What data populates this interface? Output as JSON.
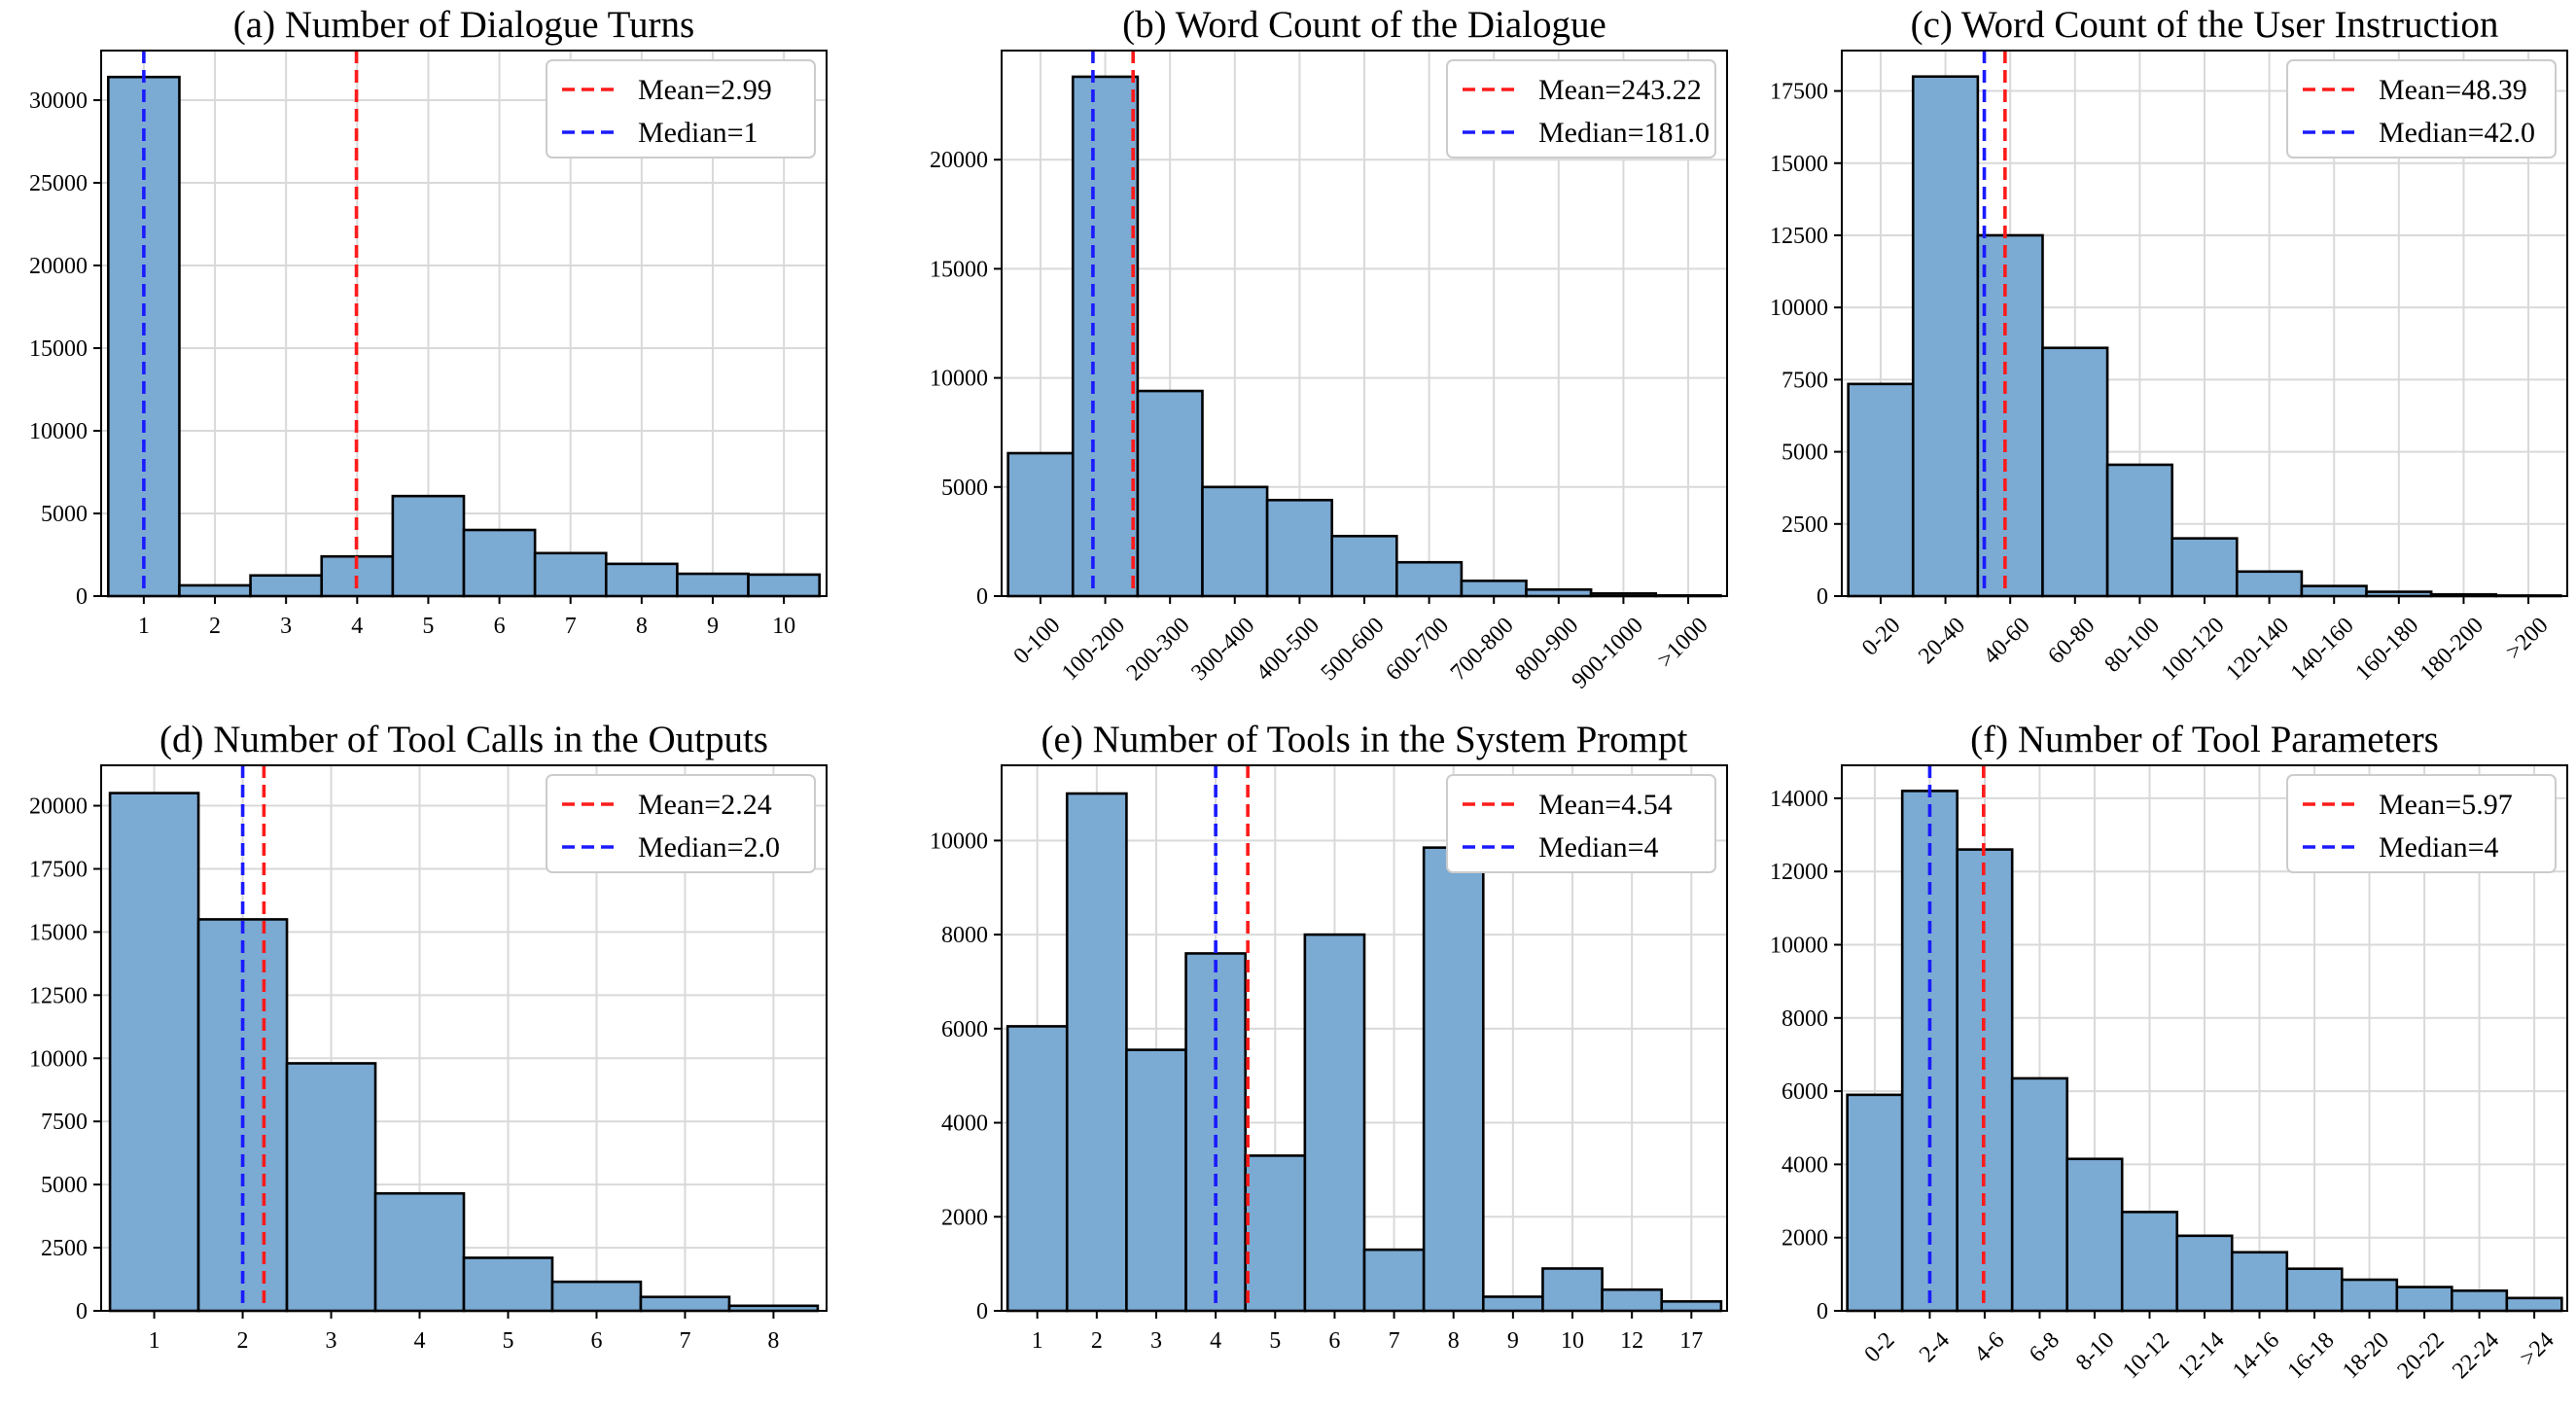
{
  "colors": {
    "bar": "#7baad3",
    "edge": "#000000",
    "mean": "#ff1a1a",
    "median": "#1a1aff",
    "grid": "#d9d9d9"
  },
  "chart_data": [
    {
      "id": "a",
      "type": "bar",
      "title": "(a) Number of Dialogue Turns",
      "categories": [
        "1",
        "2",
        "3",
        "4",
        "5",
        "6",
        "7",
        "8",
        "9",
        "10"
      ],
      "values": [
        31400,
        650,
        1250,
        2400,
        6050,
        4000,
        2600,
        1950,
        1350,
        1300
      ],
      "ylim": [
        0,
        33000
      ],
      "yticks": [
        0,
        5000,
        10000,
        15000,
        20000,
        25000,
        30000
      ],
      "xlabel_rotation": 0,
      "mean": {
        "label": "Mean=2.99",
        "position": 2.99
      },
      "median": {
        "label": "Median=1",
        "position": 0
      },
      "legend": "top-right"
    },
    {
      "id": "b",
      "type": "bar",
      "title": "(b) Word Count of the Dialogue",
      "categories": [
        "0-100",
        "100-200",
        "200-300",
        "300-400",
        "400-500",
        "500-600",
        "600-700",
        "700-800",
        "800-900",
        "900-1000",
        ">1000"
      ],
      "values": [
        6550,
        23800,
        9400,
        5000,
        4400,
        2750,
        1550,
        700,
        300,
        120,
        30
      ],
      "ylim": [
        0,
        25000
      ],
      "yticks": [
        0,
        5000,
        10000,
        15000,
        20000
      ],
      "xlabel_rotation": -45,
      "mean": {
        "label": "Mean=243.22",
        "position": 1.43
      },
      "median": {
        "label": "Median=181.0",
        "position": 0.81
      },
      "legend": "top-right"
    },
    {
      "id": "c",
      "type": "bar",
      "title": "(c) Word Count of the User Instruction",
      "categories": [
        "0-20",
        "20-40",
        "40-60",
        "60-80",
        "80-100",
        "100-120",
        "120-140",
        "140-160",
        "160-180",
        "180-200",
        ">200"
      ],
      "values": [
        7350,
        18000,
        12500,
        8600,
        4550,
        2000,
        850,
        350,
        150,
        60,
        20
      ],
      "ylim": [
        0,
        18900
      ],
      "yticks": [
        0,
        2500,
        5000,
        7500,
        10000,
        12500,
        15000,
        17500
      ],
      "xlabel_rotation": -45,
      "mean": {
        "label": "Mean=48.39",
        "position": 1.92
      },
      "median": {
        "label": "Median=42.0",
        "position": 1.6
      },
      "legend": "top-right"
    },
    {
      "id": "d",
      "type": "bar",
      "title": "(d) Number of Tool Calls in the Outputs",
      "categories": [
        "1",
        "2",
        "3",
        "4",
        "5",
        "6",
        "7",
        "8"
      ],
      "values": [
        20500,
        15500,
        9800,
        4650,
        2100,
        1150,
        550,
        200
      ],
      "ylim": [
        0,
        21600
      ],
      "yticks": [
        0,
        2500,
        5000,
        7500,
        10000,
        12500,
        15000,
        17500,
        20000
      ],
      "xlabel_rotation": 0,
      "mean": {
        "label": "Mean=2.24",
        "position": 1.24
      },
      "median": {
        "label": "Median=2.0",
        "position": 1.0
      },
      "legend": "top-right"
    },
    {
      "id": "e",
      "type": "bar",
      "title": "(e) Number of Tools in the System Prompt",
      "categories": [
        "1",
        "2",
        "3",
        "4",
        "5",
        "6",
        "7",
        "8",
        "9",
        "10",
        "12",
        "17"
      ],
      "values": [
        6050,
        11000,
        5550,
        7600,
        3300,
        8000,
        1300,
        9850,
        300,
        900,
        450,
        200
      ],
      "ylim": [
        0,
        11600
      ],
      "yticks": [
        0,
        2000,
        4000,
        6000,
        8000,
        10000
      ],
      "xlabel_rotation": 0,
      "mean": {
        "label": "Mean=4.54",
        "position": 3.54
      },
      "median": {
        "label": "Median=4",
        "position": 3.0
      },
      "legend": "top-right"
    },
    {
      "id": "f",
      "type": "bar",
      "title": "(f) Number of Tool Parameters",
      "categories": [
        "0-2",
        "2-4",
        "4-6",
        "6-8",
        "8-10",
        "10-12",
        "12-14",
        "14-16",
        "16-18",
        "18-20",
        "20-22",
        "22-24",
        ">24"
      ],
      "values": [
        5900,
        14200,
        12600,
        6350,
        4150,
        2700,
        2050,
        1600,
        1150,
        850,
        650,
        550,
        350
      ],
      "ylim": [
        0,
        14900
      ],
      "yticks": [
        0,
        2000,
        4000,
        6000,
        8000,
        10000,
        12000,
        14000
      ],
      "xlabel_rotation": -45,
      "mean": {
        "label": "Mean=5.97",
        "position": 1.98
      },
      "median": {
        "label": "Median=4",
        "position": 1.0
      },
      "legend": "top-right"
    }
  ]
}
